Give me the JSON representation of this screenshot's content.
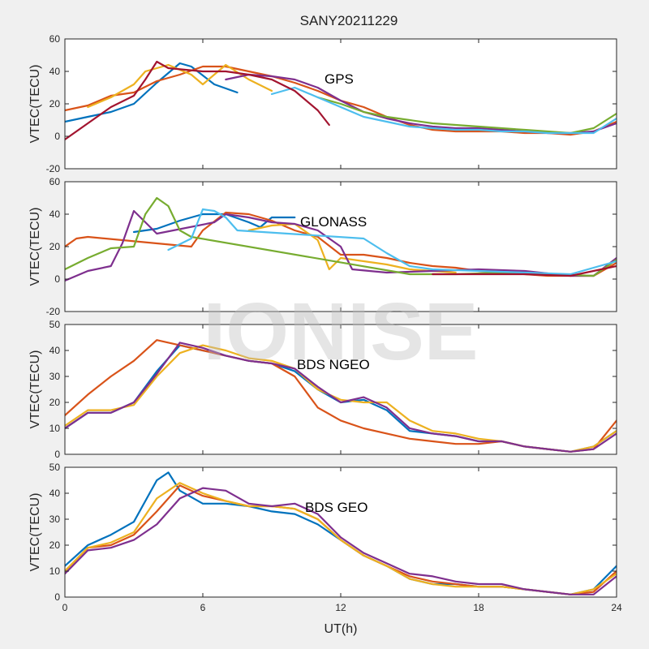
{
  "figure": {
    "title": "SANY20211229",
    "xlabel": "UT(h)",
    "watermark": "IONISE",
    "xticks": [
      "0",
      "6",
      "12",
      "18",
      "24"
    ],
    "xlim": [
      0,
      24
    ]
  },
  "palette": [
    "#0072bd",
    "#d95319",
    "#edb120",
    "#7e2f8e",
    "#77ac30",
    "#4dbeee",
    "#a2142f"
  ],
  "chart_data": [
    {
      "type": "line",
      "label": "GPS",
      "ylabel": "VTEC(TECU)",
      "ylim": [
        -20,
        60
      ],
      "yticks": [
        "-20",
        "0",
        "20",
        "40",
        "60"
      ],
      "grid": false,
      "series": [
        {
          "color": "#0072bd",
          "x": [
            0,
            1,
            2,
            3,
            4,
            5,
            5.5,
            6.5,
            7.5
          ],
          "y": [
            9,
            12,
            15,
            20,
            33,
            45,
            43,
            32,
            27
          ]
        },
        {
          "color": "#d95319",
          "x": [
            0,
            1,
            2,
            3,
            4,
            5,
            6,
            7,
            8,
            9,
            10,
            11,
            12,
            13,
            14,
            15,
            16,
            17,
            18,
            19,
            20,
            21,
            22,
            23,
            24
          ],
          "y": [
            16,
            19,
            25,
            27,
            34,
            38,
            43,
            43,
            40,
            37,
            33,
            28,
            22,
            18,
            12,
            7,
            4,
            3,
            3,
            3,
            2,
            2,
            1,
            3,
            9
          ]
        },
        {
          "color": "#edb120",
          "x": [
            1,
            2,
            3,
            3.5,
            4.5,
            5.5,
            6,
            7,
            8,
            9
          ],
          "y": [
            18,
            24,
            32,
            40,
            44,
            38,
            32,
            44,
            35,
            28
          ]
        },
        {
          "color": "#7e2f8e",
          "x": [
            7,
            8,
            9,
            10,
            11,
            12,
            13,
            14,
            15,
            16,
            17,
            18,
            19,
            20,
            21,
            22,
            23,
            24
          ],
          "y": [
            35,
            38,
            37,
            35,
            30,
            22,
            15,
            11,
            8,
            6,
            5,
            5,
            4,
            3,
            2,
            2,
            3,
            8
          ]
        },
        {
          "color": "#77ac30",
          "x": [
            11,
            12,
            13,
            14,
            15,
            16,
            17,
            18,
            19,
            20,
            21,
            22,
            23,
            24
          ],
          "y": [
            24,
            20,
            15,
            12,
            10,
            8,
            7,
            6,
            5,
            4,
            3,
            2,
            5,
            14
          ]
        },
        {
          "color": "#4dbeee",
          "x": [
            9,
            10,
            11,
            12,
            13,
            14,
            15,
            16,
            17,
            18,
            19,
            20,
            21,
            22,
            23,
            24
          ],
          "y": [
            26,
            30,
            24,
            18,
            12,
            9,
            6,
            5,
            4,
            4,
            3,
            3,
            2,
            2,
            2,
            11
          ]
        },
        {
          "color": "#a2142f",
          "x": [
            0,
            1,
            2,
            3,
            3.5,
            4,
            4.5,
            6,
            7,
            8,
            9,
            10,
            11,
            11.5
          ],
          "y": [
            -2,
            8,
            18,
            25,
            35,
            46,
            42,
            40,
            40,
            38,
            35,
            28,
            16,
            7
          ]
        }
      ]
    },
    {
      "type": "line",
      "label": "GLONASS",
      "ylabel": "VTEC(TECU)",
      "ylim": [
        -20,
        60
      ],
      "yticks": [
        "-20",
        "0",
        "20",
        "40",
        "60"
      ],
      "grid": false,
      "series": [
        {
          "color": "#0072bd",
          "x": [
            3,
            4,
            5,
            6,
            7,
            8,
            8.5,
            9,
            10
          ],
          "y": [
            29,
            31,
            36,
            40,
            40,
            35,
            32,
            38,
            38
          ]
        },
        {
          "color": "#d95319",
          "x": [
            0,
            0.5,
            1,
            5.5,
            6,
            7,
            8,
            9,
            10,
            11,
            12,
            13,
            14,
            15,
            16,
            17,
            18,
            19,
            20,
            21,
            22,
            23,
            24
          ],
          "y": [
            20,
            25,
            26,
            20,
            30,
            41,
            40,
            36,
            30,
            26,
            15,
            15,
            13,
            10,
            8,
            7,
            5,
            4,
            3,
            2,
            2,
            2,
            10
          ]
        },
        {
          "color": "#edb120",
          "x": [
            8,
            9,
            10,
            11,
            11.5,
            12,
            14,
            15,
            16,
            17
          ],
          "y": [
            30,
            33,
            34,
            24,
            6,
            13,
            9,
            6,
            5,
            4
          ]
        },
        {
          "color": "#7e2f8e",
          "x": [
            0,
            1,
            2,
            2.5,
            3,
            3.5,
            4,
            6.5,
            7,
            8,
            9,
            10,
            11,
            12,
            12.5,
            14,
            16,
            18,
            20,
            22,
            23,
            24
          ],
          "y": [
            -1,
            5,
            8,
            22,
            42,
            35,
            28,
            35,
            40,
            38,
            35,
            34,
            30,
            20,
            6,
            4,
            5,
            6,
            5,
            2,
            2,
            13
          ]
        },
        {
          "color": "#77ac30",
          "x": [
            0,
            1,
            2,
            3,
            3.5,
            4,
            4.5,
            5,
            5.5,
            15,
            17,
            19,
            21,
            23,
            24
          ],
          "y": [
            6,
            13,
            19,
            20,
            40,
            50,
            45,
            30,
            26,
            3,
            3,
            4,
            3,
            2,
            12
          ]
        },
        {
          "color": "#4dbeee",
          "x": [
            4.5,
            5.5,
            6,
            6.5,
            7,
            7.5,
            13,
            14,
            15,
            16,
            18,
            20,
            22,
            24
          ],
          "y": [
            18,
            25,
            43,
            42,
            38,
            30,
            25,
            16,
            8,
            6,
            5,
            4,
            3,
            11
          ]
        },
        {
          "color": "#a2142f",
          "x": [
            16,
            18,
            20,
            22,
            24
          ],
          "y": [
            3,
            3,
            3,
            2,
            8
          ]
        }
      ]
    },
    {
      "type": "line",
      "label": "BDS NGEO",
      "ylabel": "VTEC(TECU)",
      "ylim": [
        0,
        50
      ],
      "yticks": [
        "0",
        "10",
        "20",
        "30",
        "40",
        "50"
      ],
      "grid": false,
      "series": [
        {
          "color": "#0072bd",
          "x": [
            0,
            1,
            2,
            3,
            4,
            5,
            6,
            7,
            8,
            9,
            10,
            11,
            12,
            13,
            14,
            15,
            16,
            17,
            18,
            19,
            20,
            21,
            22,
            23,
            24
          ],
          "y": [
            10,
            16,
            16,
            20,
            32,
            42,
            40,
            38,
            36,
            35,
            32,
            25,
            20,
            21,
            17,
            9,
            8,
            7,
            5,
            5,
            3,
            2,
            1,
            3,
            9
          ]
        },
        {
          "color": "#d95319",
          "x": [
            0,
            1,
            2,
            3,
            4,
            5,
            6,
            7,
            8,
            9,
            10,
            11,
            12,
            13,
            14,
            15,
            16,
            17,
            18,
            19,
            20,
            21,
            22,
            23,
            24
          ],
          "y": [
            15,
            23,
            30,
            36,
            44,
            42,
            40,
            38,
            36,
            35,
            30,
            18,
            13,
            10,
            8,
            6,
            5,
            4,
            4,
            5,
            3,
            2,
            1,
            2,
            13
          ]
        },
        {
          "color": "#edb120",
          "x": [
            0,
            1,
            2,
            3,
            4,
            5,
            6,
            7,
            8,
            9,
            10,
            11,
            12,
            13,
            14,
            15,
            16,
            17,
            18,
            19,
            20,
            21,
            22,
            23,
            24
          ],
          "y": [
            11,
            17,
            17,
            19,
            30,
            39,
            42,
            40,
            37,
            36,
            33,
            25,
            21,
            20,
            20,
            13,
            9,
            8,
            6,
            5,
            3,
            2,
            1,
            3,
            9
          ]
        },
        {
          "color": "#7e2f8e",
          "x": [
            0,
            1,
            2,
            3,
            4,
            5,
            6,
            7,
            8,
            9,
            10,
            11,
            12,
            13,
            14,
            15,
            16,
            17,
            18,
            19,
            20,
            21,
            22,
            23,
            24
          ],
          "y": [
            10,
            16,
            16,
            20,
            31,
            43,
            41,
            38,
            36,
            35,
            33,
            26,
            20,
            22,
            18,
            10,
            8,
            7,
            5,
            5,
            3,
            2,
            1,
            2,
            8
          ]
        }
      ]
    },
    {
      "type": "line",
      "label": "BDS GEO",
      "ylabel": "VTEC(TECU)",
      "ylim": [
        0,
        50
      ],
      "yticks": [
        "0",
        "10",
        "20",
        "30",
        "40",
        "50"
      ],
      "grid": false,
      "series": [
        {
          "color": "#0072bd",
          "x": [
            0,
            1,
            2,
            3,
            4,
            4.5,
            5,
            6,
            7,
            8,
            9,
            10,
            11,
            12,
            13,
            14,
            15,
            16,
            17,
            18,
            19,
            20,
            21,
            22,
            23,
            24
          ],
          "y": [
            12,
            20,
            24,
            29,
            45,
            48,
            41,
            36,
            36,
            35,
            33,
            32,
            28,
            22,
            16,
            12,
            7,
            5,
            5,
            4,
            4,
            3,
            2,
            1,
            3,
            12
          ]
        },
        {
          "color": "#d95319",
          "x": [
            0,
            1,
            2,
            3,
            4,
            5,
            6,
            7,
            8,
            9,
            10,
            11,
            12,
            13,
            14,
            15,
            16,
            17,
            18,
            19,
            20,
            21,
            22,
            23,
            24
          ],
          "y": [
            10,
            19,
            20,
            24,
            33,
            43,
            39,
            37,
            35,
            35,
            34,
            30,
            22,
            16,
            12,
            8,
            6,
            5,
            4,
            4,
            3,
            2,
            1,
            2,
            10
          ]
        },
        {
          "color": "#edb120",
          "x": [
            0,
            1,
            2,
            3,
            4,
            5,
            6,
            7,
            8,
            9,
            10,
            11,
            12,
            13,
            14,
            15,
            16,
            17,
            18,
            19,
            20,
            21,
            22,
            23,
            24
          ],
          "y": [
            10,
            19,
            21,
            25,
            38,
            44,
            40,
            37,
            35,
            35,
            34,
            30,
            22,
            16,
            12,
            7,
            5,
            4,
            4,
            4,
            3,
            2,
            1,
            3,
            9
          ]
        },
        {
          "color": "#7e2f8e",
          "x": [
            0,
            1,
            2,
            3,
            4,
            5,
            6,
            7,
            8,
            9,
            10,
            11,
            12,
            13,
            14,
            15,
            16,
            17,
            18,
            19,
            20,
            21,
            22,
            23,
            24
          ],
          "y": [
            9,
            18,
            19,
            22,
            28,
            38,
            42,
            41,
            36,
            35,
            36,
            32,
            23,
            17,
            13,
            9,
            8,
            6,
            5,
            5,
            3,
            2,
            1,
            1,
            8
          ]
        }
      ]
    }
  ]
}
